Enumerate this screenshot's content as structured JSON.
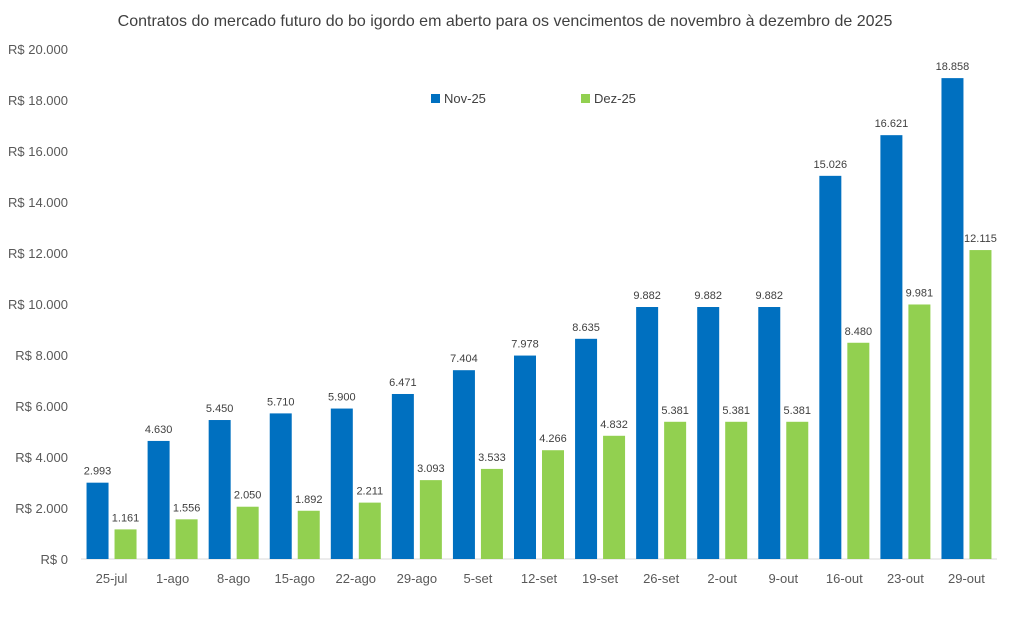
{
  "chart_data": {
    "type": "bar",
    "title": "Contratos do mercado futuro do bo igordo em aberto para os vencimentos de novembro à dezembro de 2025",
    "xlabel": "",
    "ylabel": "",
    "ylim": [
      0,
      20000
    ],
    "yticks": [
      "R$ 0",
      "R$ 2.000",
      "R$ 4.000",
      "R$ 6.000",
      "R$ 8.000",
      "R$ 10.000",
      "R$ 12.000",
      "R$ 14.000",
      "R$ 16.000",
      "R$ 18.000",
      "R$ 20.000"
    ],
    "grid": false,
    "legend_position": "top-center",
    "categories": [
      "25-jul",
      "1-ago",
      "8-ago",
      "15-ago",
      "22-ago",
      "29-ago",
      "5-set",
      "12-set",
      "19-set",
      "26-set",
      "2-out",
      "9-out",
      "16-out",
      "23-out",
      "29-out"
    ],
    "series": [
      {
        "name": "Nov-25",
        "color": "#0070C0",
        "values": [
          2993,
          4630,
          5450,
          5710,
          5900,
          6471,
          7404,
          7978,
          8635,
          9882,
          9882,
          9882,
          15026,
          16621,
          18858
        ],
        "labels": [
          "2.993",
          "4.630",
          "5.450",
          "5.710",
          "5.900",
          "6.471",
          "7.404",
          "7.978",
          "8.635",
          "9.882",
          "9.882",
          "9.882",
          "15.026",
          "16.621",
          "18.858"
        ]
      },
      {
        "name": "Dez-25",
        "color": "#92D050",
        "values": [
          1161,
          1556,
          2050,
          1892,
          2211,
          3093,
          3533,
          4266,
          4832,
          5381,
          5381,
          5381,
          8480,
          9981,
          12115
        ],
        "labels": [
          "1.161",
          "1.556",
          "2.050",
          "1.892",
          "2.211",
          "3.093",
          "3.533",
          "4.266",
          "4.832",
          "5.381",
          "5.381",
          "5.381",
          "8.480",
          "9.981",
          "12.115"
        ]
      }
    ]
  }
}
